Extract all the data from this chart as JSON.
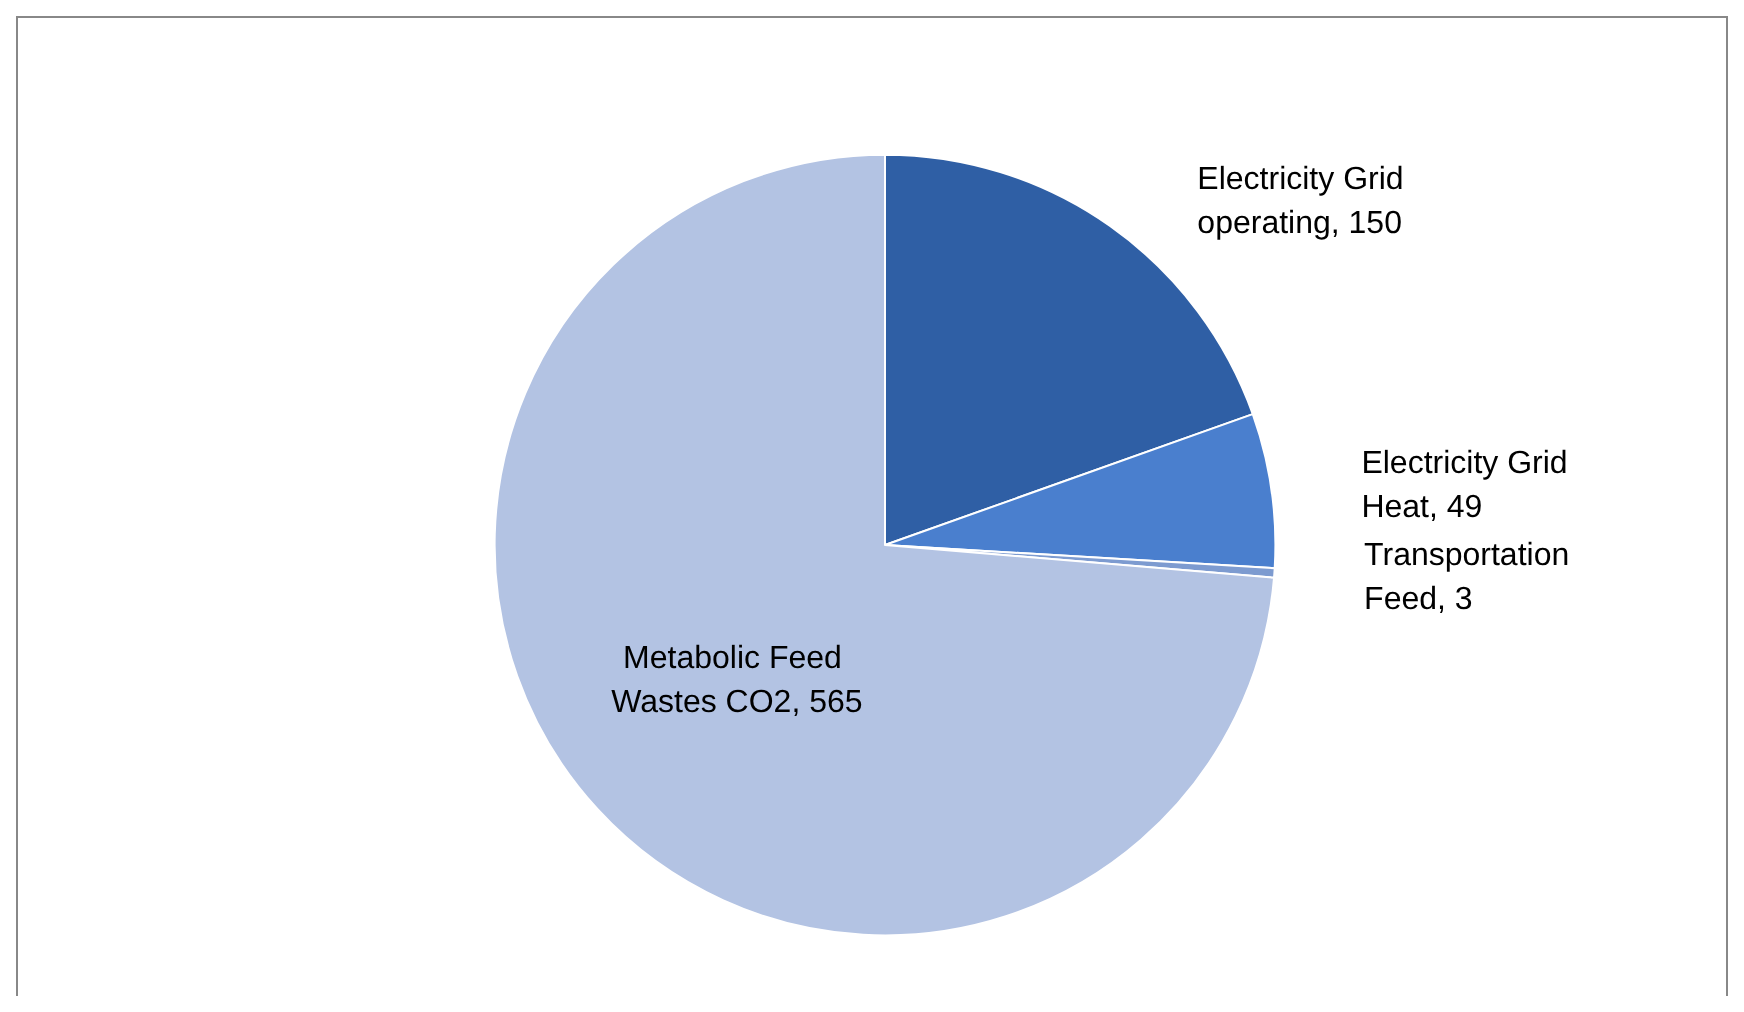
{
  "chart_data": {
    "type": "pie",
    "categories": [
      "Electricity Grid operating",
      "Electricity Grid Heat",
      "Transportation Feed",
      "Metabolic Feed Wastes CO2"
    ],
    "values": [
      150,
      49,
      3,
      565
    ],
    "value_labels": [
      "150",
      "49",
      "3",
      "565"
    ],
    "colors": [
      "#2f5fa5",
      "#4a7fce",
      "#7d9bd0",
      "#b3c3e3"
    ],
    "data_labels": true,
    "legend": false
  }
}
